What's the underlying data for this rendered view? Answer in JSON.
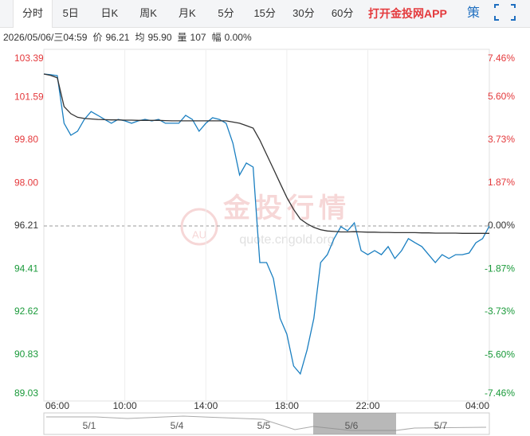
{
  "tabs": [
    "分时",
    "5日",
    "日K",
    "周K",
    "月K",
    "5分",
    "15分",
    "30分",
    "60分"
  ],
  "app_link": "打开金投网APP",
  "strategy": "策",
  "info": {
    "time": "2026/05/06/三04:59",
    "items": [
      {
        "label": "价",
        "value": "96.21"
      },
      {
        "label": "均",
        "value": "95.90"
      },
      {
        "label": "量",
        "value": "107"
      },
      {
        "label": "幅",
        "value": "0.00%"
      }
    ]
  },
  "watermark": {
    "logo": "AU",
    "title": "金投行情",
    "url": "quote.cngold.org"
  },
  "navigator": {
    "labels": [
      "5/1",
      "5/4",
      "5/5",
      "5/6",
      "5/7"
    ]
  },
  "chart_data": {
    "type": "line",
    "x": [
      "06:00",
      "06:20",
      "06:40",
      "07:00",
      "07:20",
      "07:40",
      "08:00",
      "08:20",
      "08:40",
      "09:00",
      "09:20",
      "09:40",
      "10:00",
      "10:20",
      "10:40",
      "11:00",
      "11:20",
      "11:40",
      "12:00",
      "12:20",
      "12:40",
      "13:00",
      "13:20",
      "13:40",
      "14:00",
      "14:20",
      "14:40",
      "15:00",
      "15:20",
      "15:40",
      "16:00",
      "16:20",
      "16:40",
      "17:00",
      "17:20",
      "17:40",
      "18:00",
      "18:20",
      "18:40",
      "19:00",
      "19:20",
      "19:40",
      "20:00",
      "20:20",
      "20:40",
      "21:00",
      "21:20",
      "21:40",
      "22:00",
      "22:20",
      "22:40",
      "23:00",
      "23:20",
      "23:40",
      "00:00",
      "00:20",
      "00:40",
      "01:00",
      "01:20",
      "01:40",
      "02:00",
      "02:20",
      "02:40",
      "03:00",
      "03:20",
      "03:40",
      "04:00"
    ],
    "series": [
      {
        "color": "#1a7fc1",
        "values": [
          102.56,
          102.53,
          102.49,
          100.5,
          100.0,
          100.17,
          100.66,
          100.99,
          100.83,
          100.66,
          100.5,
          100.66,
          100.6,
          100.5,
          100.6,
          100.66,
          100.6,
          100.66,
          100.5,
          100.5,
          100.5,
          100.83,
          100.66,
          100.17,
          100.5,
          100.73,
          100.66,
          100.5,
          99.67,
          98.34,
          98.84,
          98.67,
          94.68,
          94.68,
          94.02,
          92.35,
          91.69,
          90.36,
          90.03,
          91.03,
          92.35,
          94.68,
          95.01,
          95.68,
          96.18,
          96.01,
          96.34,
          95.18,
          95.01,
          95.18,
          95.01,
          95.35,
          94.85,
          95.18,
          95.68,
          95.51,
          95.35,
          95.01,
          94.68,
          95.01,
          94.85,
          95.01,
          95.01,
          95.08,
          95.51,
          95.68,
          96.21
        ]
      },
      {
        "color": "#333333",
        "values": [
          102.56,
          102.5,
          102.4,
          101.2,
          100.9,
          100.75,
          100.7,
          100.68,
          100.66,
          100.65,
          100.64,
          100.64,
          100.63,
          100.63,
          100.62,
          100.62,
          100.62,
          100.62,
          100.61,
          100.6,
          100.6,
          100.6,
          100.6,
          100.6,
          100.6,
          100.6,
          100.6,
          100.6,
          100.55,
          100.5,
          100.4,
          100.3,
          99.8,
          99.2,
          98.6,
          98.0,
          97.4,
          96.9,
          96.5,
          96.3,
          96.15,
          96.05,
          96.0,
          95.98,
          95.96,
          95.96,
          95.97,
          95.96,
          95.95,
          95.95,
          95.94,
          95.94,
          95.93,
          95.93,
          95.93,
          95.93,
          95.92,
          95.92,
          95.91,
          95.91,
          95.91,
          95.91,
          95.9,
          95.9,
          95.9,
          95.9,
          95.9
        ]
      }
    ],
    "xlim": [
      "06:00",
      "04:00"
    ],
    "xticks": [
      "06:00",
      "10:00",
      "14:00",
      "18:00",
      "22:00",
      "04:00"
    ],
    "ylim": [
      89.03,
      103.39
    ],
    "yticks": [
      103.39,
      101.59,
      {
        "value": 99.8,
        "label": "99.80"
      },
      {
        "value": 98,
        "label": "98.00"
      },
      96.21,
      94.41,
      92.62,
      90.83,
      89.03
    ],
    "y2lim": [
      -7.46,
      7.46
    ],
    "y2ticks": [
      {
        "value": 7.46,
        "label": "7.46%"
      },
      {
        "value": 5.6,
        "label": "5.60%"
      },
      {
        "value": 3.73,
        "label": "3.73%"
      },
      {
        "value": 1.87,
        "label": "1.87%"
      },
      {
        "value": 0,
        "label": "0.00%"
      },
      {
        "value": -1.87,
        "label": "-1.87%"
      },
      {
        "value": -3.73,
        "label": "-3.73%"
      },
      {
        "value": -5.6,
        "label": "-5.60%"
      },
      {
        "value": -7.46,
        "label": "-7.46%"
      }
    ],
    "reference": 96.21,
    "grid": "x",
    "up_color": "#e4393c",
    "down_color": "#1a9a3a",
    "flat_color": "#333333"
  }
}
